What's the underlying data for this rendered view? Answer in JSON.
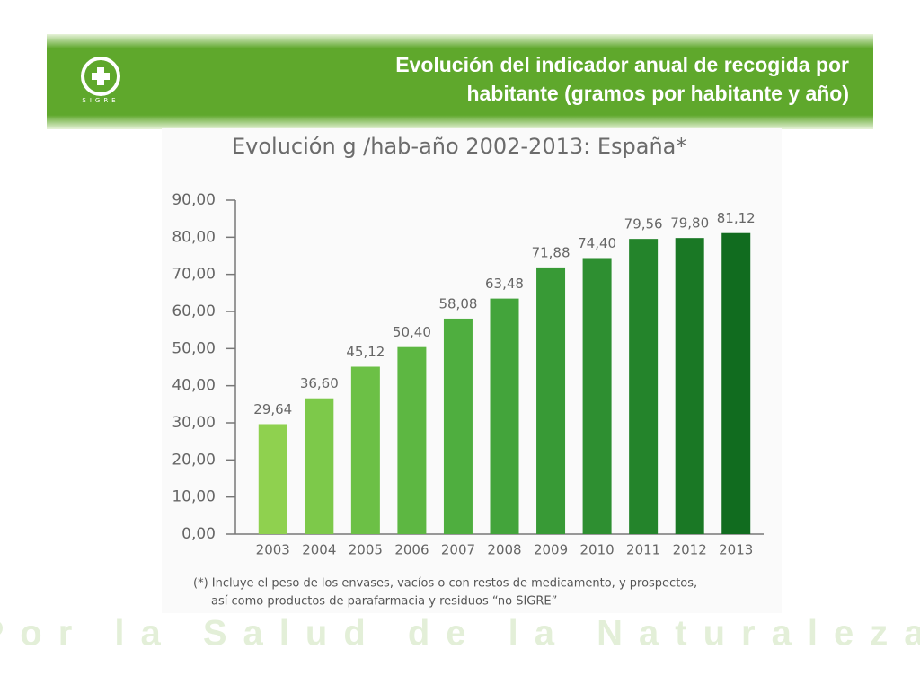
{
  "header": {
    "title_lines": [
      "Evolución del indicador anual de recogida por",
      "habitante (gramos por habitante y año)"
    ],
    "logo_text": "SIGRE"
  },
  "footer": "Por la Salud de la Naturaleza",
  "chart_data": {
    "type": "bar",
    "title": "Evolución g /hab-año 2002-2013: España*",
    "categories": [
      "2003",
      "2004",
      "2005",
      "2006",
      "2007",
      "2008",
      "2009",
      "2010",
      "2011",
      "2012",
      "2013"
    ],
    "values": [
      29.64,
      36.6,
      45.12,
      50.4,
      58.08,
      63.48,
      71.88,
      74.4,
      79.56,
      79.8,
      81.12
    ],
    "value_labels": [
      "29,64",
      "36,60",
      "45,12",
      "50,40",
      "58,08",
      "63,48",
      "71,88",
      "74,40",
      "79,56",
      "79,80",
      "81,12"
    ],
    "colors": [
      "#8fd14f",
      "#7dc94a",
      "#6cc046",
      "#5db742",
      "#4fae3f",
      "#43a43b",
      "#389a36",
      "#2e8f31",
      "#24842b",
      "#1a7825",
      "#116c1f"
    ],
    "ylim": [
      0,
      90
    ],
    "yticks": [
      {
        "value": 0,
        "label": "0,00"
      },
      {
        "value": 10,
        "label": "10,00"
      },
      {
        "value": 20,
        "label": "20,00"
      },
      {
        "value": 30,
        "label": "30,00"
      },
      {
        "value": 40,
        "label": "40,00"
      },
      {
        "value": 50,
        "label": "50,00"
      },
      {
        "value": 60,
        "label": "60,00"
      },
      {
        "value": 70,
        "label": "70,00"
      },
      {
        "value": 80,
        "label": "80,00"
      },
      {
        "value": 90,
        "label": "90,00"
      }
    ],
    "grid": false,
    "notes": [
      "(*) Incluye el peso de los envases, vacíos o con restos de medicamento, y prospectos,",
      "así como productos de parafarmacia y residuos “no SIGRE”"
    ]
  }
}
